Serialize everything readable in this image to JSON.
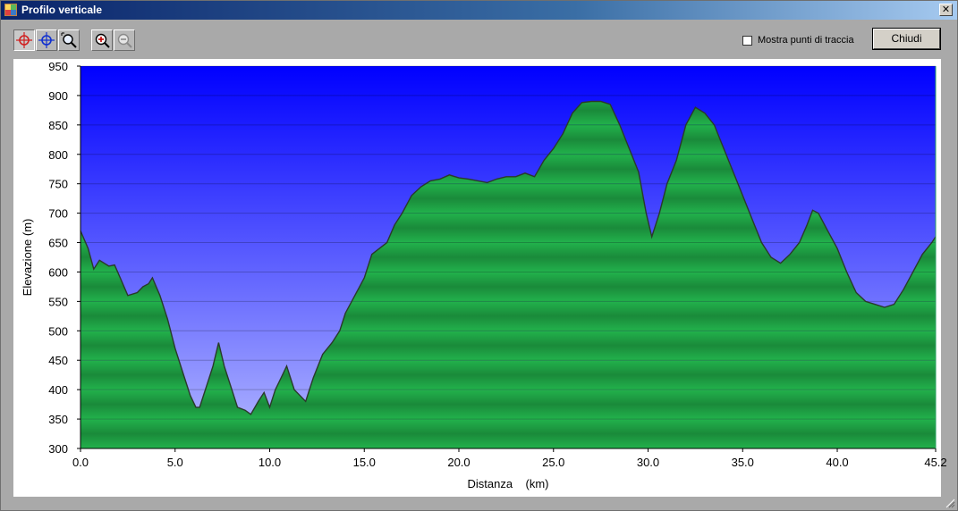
{
  "window": {
    "title": "Profilo verticale",
    "close_glyph": "✕"
  },
  "toolbar": {
    "tools": [
      {
        "icon": "crosshair-red-icon",
        "pressed": true
      },
      {
        "icon": "crosshair-blue-icon",
        "pressed": false
      },
      {
        "icon": "zoom-window-icon",
        "pressed": false
      },
      {
        "icon": "zoom-in-icon",
        "pressed": false
      },
      {
        "icon": "zoom-out-icon",
        "pressed": false
      }
    ],
    "show_points_label": "Mostra punti di traccia",
    "show_points_checked": false,
    "close_label": "Chiudi"
  },
  "chart_data": {
    "type": "area",
    "xlabel": "Distanza    (km)",
    "ylabel": "Elevazione (m)",
    "xlim": [
      0,
      45.2
    ],
    "ylim": [
      300,
      950
    ],
    "x_ticks": [
      "0.0",
      "5.0",
      "10.0",
      "15.0",
      "20.0",
      "25.0",
      "30.0",
      "35.0",
      "40.0",
      "45.2"
    ],
    "x_tick_values": [
      0,
      5,
      10,
      15,
      20,
      25,
      30,
      35,
      40,
      45.2
    ],
    "y_ticks": [
      300,
      350,
      400,
      450,
      500,
      550,
      600,
      650,
      700,
      750,
      800,
      850,
      900,
      950
    ],
    "grid": true,
    "colors": {
      "sky_top": "#0000ff",
      "sky_bottom": "#b4b9ff",
      "fill_light": "#22b24c",
      "fill_dark": "#1a8a3a",
      "line": "#2a3a2a"
    },
    "series": [
      {
        "points": [
          [
            0,
            670
          ],
          [
            0.4,
            640
          ],
          [
            0.7,
            605
          ],
          [
            1,
            620
          ],
          [
            1.5,
            610
          ],
          [
            1.8,
            612
          ],
          [
            2.1,
            590
          ],
          [
            2.5,
            560
          ],
          [
            3,
            565
          ],
          [
            3.3,
            575
          ],
          [
            3.6,
            580
          ],
          [
            3.8,
            590
          ],
          [
            4.2,
            560
          ],
          [
            4.6,
            520
          ],
          [
            5,
            470
          ],
          [
            5.4,
            430
          ],
          [
            5.8,
            390
          ],
          [
            6.1,
            370
          ],
          [
            6.3,
            370
          ],
          [
            6.6,
            400
          ],
          [
            7,
            440
          ],
          [
            7.3,
            480
          ],
          [
            7.6,
            440
          ],
          [
            8,
            400
          ],
          [
            8.3,
            370
          ],
          [
            8.7,
            365
          ],
          [
            9,
            358
          ],
          [
            9.4,
            380
          ],
          [
            9.7,
            395
          ],
          [
            10,
            370
          ],
          [
            10.3,
            400
          ],
          [
            10.6,
            420
          ],
          [
            10.9,
            440
          ],
          [
            11.3,
            400
          ],
          [
            11.6,
            390
          ],
          [
            11.9,
            380
          ],
          [
            12.3,
            420
          ],
          [
            12.8,
            460
          ],
          [
            13.3,
            480
          ],
          [
            13.7,
            500
          ],
          [
            14,
            530
          ],
          [
            14.5,
            560
          ],
          [
            15,
            590
          ],
          [
            15.4,
            630
          ],
          [
            15.8,
            640
          ],
          [
            16.2,
            650
          ],
          [
            16.6,
            680
          ],
          [
            17,
            700
          ],
          [
            17.5,
            730
          ],
          [
            18,
            745
          ],
          [
            18.5,
            755
          ],
          [
            19,
            758
          ],
          [
            19.5,
            765
          ],
          [
            20,
            760
          ],
          [
            20.5,
            758
          ],
          [
            21,
            755
          ],
          [
            21.5,
            752
          ],
          [
            22,
            758
          ],
          [
            22.5,
            762
          ],
          [
            23,
            762
          ],
          [
            23.5,
            768
          ],
          [
            24,
            762
          ],
          [
            24.5,
            790
          ],
          [
            25,
            810
          ],
          [
            25.5,
            835
          ],
          [
            26,
            870
          ],
          [
            26.5,
            888
          ],
          [
            27,
            890
          ],
          [
            27.5,
            890
          ],
          [
            28,
            885
          ],
          [
            28.5,
            850
          ],
          [
            29,
            810
          ],
          [
            29.5,
            770
          ],
          [
            29.9,
            700
          ],
          [
            30.2,
            660
          ],
          [
            30.6,
            700
          ],
          [
            31,
            750
          ],
          [
            31.5,
            790
          ],
          [
            32,
            850
          ],
          [
            32.5,
            880
          ],
          [
            33,
            870
          ],
          [
            33.5,
            850
          ],
          [
            34,
            810
          ],
          [
            34.5,
            770
          ],
          [
            35,
            730
          ],
          [
            35.5,
            690
          ],
          [
            36,
            650
          ],
          [
            36.5,
            625
          ],
          [
            37,
            615
          ],
          [
            37.5,
            630
          ],
          [
            38,
            650
          ],
          [
            38.4,
            680
          ],
          [
            38.7,
            705
          ],
          [
            39,
            700
          ],
          [
            39.5,
            670
          ],
          [
            40,
            640
          ],
          [
            40.5,
            600
          ],
          [
            41,
            565
          ],
          [
            41.5,
            550
          ],
          [
            42,
            545
          ],
          [
            42.5,
            540
          ],
          [
            43,
            545
          ],
          [
            43.5,
            570
          ],
          [
            44,
            600
          ],
          [
            44.5,
            630
          ],
          [
            45,
            650
          ],
          [
            45.2,
            660
          ]
        ]
      }
    ]
  }
}
